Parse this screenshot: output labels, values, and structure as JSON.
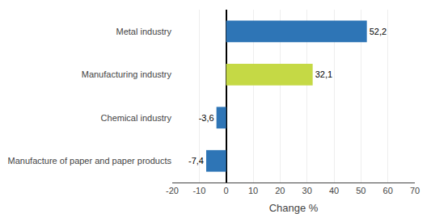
{
  "chart_data": {
    "type": "bar",
    "orientation": "horizontal",
    "categories": [
      "Manufacture of paper and paper products",
      "Chemical industry",
      "Manufacturing industry",
      "Metal industry"
    ],
    "values": [
      -7.4,
      -3.6,
      32.1,
      52.2
    ],
    "value_labels": [
      "-7,4",
      "-3,6",
      "32,1",
      "52,2"
    ],
    "data_labels": true,
    "colors": [
      "#2e75b6",
      "#2e75b6",
      "#c5d945",
      "#2e75b6"
    ],
    "xlabel": "Change %",
    "xlim": [
      -20,
      70
    ],
    "xticks": [
      -20,
      -10,
      0,
      10,
      20,
      30,
      40,
      50,
      60,
      70
    ],
    "grid": true
  }
}
